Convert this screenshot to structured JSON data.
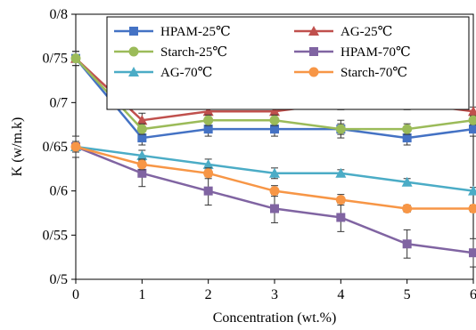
{
  "chart_data": {
    "type": "line",
    "xlabel": "Concentration (wt.%)",
    "ylabel": "K (w/m.k)",
    "x": [
      0,
      1,
      2,
      3,
      4,
      5,
      6
    ],
    "xlim": [
      0,
      6
    ],
    "ylim": [
      0.5,
      0.8
    ],
    "yticks": [
      0.5,
      0.55,
      0.6,
      0.65,
      0.7,
      0.75,
      0.8
    ],
    "ytick_labels": [
      "0/5",
      "0/55",
      "0/6",
      "0/65",
      "0/7",
      "0/75",
      "0/8"
    ],
    "xtick_labels": [
      "0",
      "1",
      "2",
      "3",
      "4",
      "5",
      "6"
    ],
    "grid": false,
    "legend_position": "top-right",
    "legend_columns": 2,
    "series": [
      {
        "name": "HPAM-25℃",
        "color": "#4472C4",
        "marker": "square",
        "values": [
          0.75,
          0.66,
          0.67,
          0.67,
          0.67,
          0.66,
          0.67
        ],
        "errors": [
          0.008,
          0.008,
          0.008,
          0.008,
          0.01,
          0.008,
          0.008
        ]
      },
      {
        "name": "AG-25℃",
        "color": "#C0504D",
        "marker": "triangle",
        "values": [
          0.75,
          0.68,
          0.69,
          0.69,
          0.7,
          0.7,
          0.69
        ],
        "errors": [
          0.008,
          0.008,
          0.008,
          0.008,
          0.008,
          0.008,
          0.005
        ]
      },
      {
        "name": "Starch-25℃",
        "color": "#9BBB59",
        "marker": "circle",
        "values": [
          0.75,
          0.67,
          0.68,
          0.68,
          0.67,
          0.67,
          0.68
        ],
        "errors": [
          0.008,
          0.006,
          0.006,
          0.006,
          0.006,
          0.006,
          0.005
        ]
      },
      {
        "name": "HPAM-70℃",
        "color": "#8064A2",
        "marker": "square",
        "values": [
          0.65,
          0.62,
          0.6,
          0.58,
          0.57,
          0.54,
          0.53
        ],
        "errors": [
          0.012,
          0.015,
          0.016,
          0.016,
          0.016,
          0.016,
          0.016
        ]
      },
      {
        "name": "AG-70℃",
        "color": "#4BACC6",
        "marker": "triangle",
        "values": [
          0.65,
          0.64,
          0.63,
          0.62,
          0.62,
          0.61,
          0.6
        ],
        "errors": [
          0.006,
          0.006,
          0.006,
          0.006,
          0.004,
          0.004,
          0.004
        ]
      },
      {
        "name": "Starch-70℃",
        "color": "#F79646",
        "marker": "circle",
        "values": [
          0.65,
          0.63,
          0.62,
          0.6,
          0.59,
          0.58,
          0.58
        ],
        "errors": [
          0.006,
          0.006,
          0.006,
          0.006,
          0.006,
          0.004,
          0.004
        ]
      }
    ]
  }
}
